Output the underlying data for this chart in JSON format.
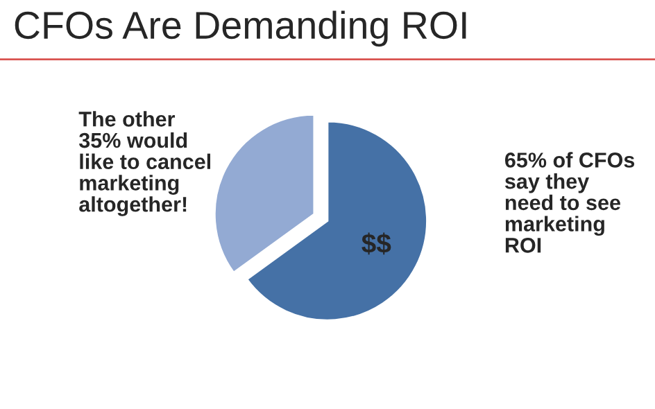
{
  "chart_data": {
    "type": "pie",
    "title": "CFOs Are Demanding ROI",
    "categories": [
      "$$",
      null
    ],
    "values": [
      65,
      35
    ],
    "colors": [
      "#4571a6",
      "#93aad3"
    ],
    "annotations": [
      "The other\n35% would\nlike to cancel\nmarketing\naltogether!",
      "65% of CFOs\nsay they\nneed to see\nmarketing\nROI"
    ]
  }
}
